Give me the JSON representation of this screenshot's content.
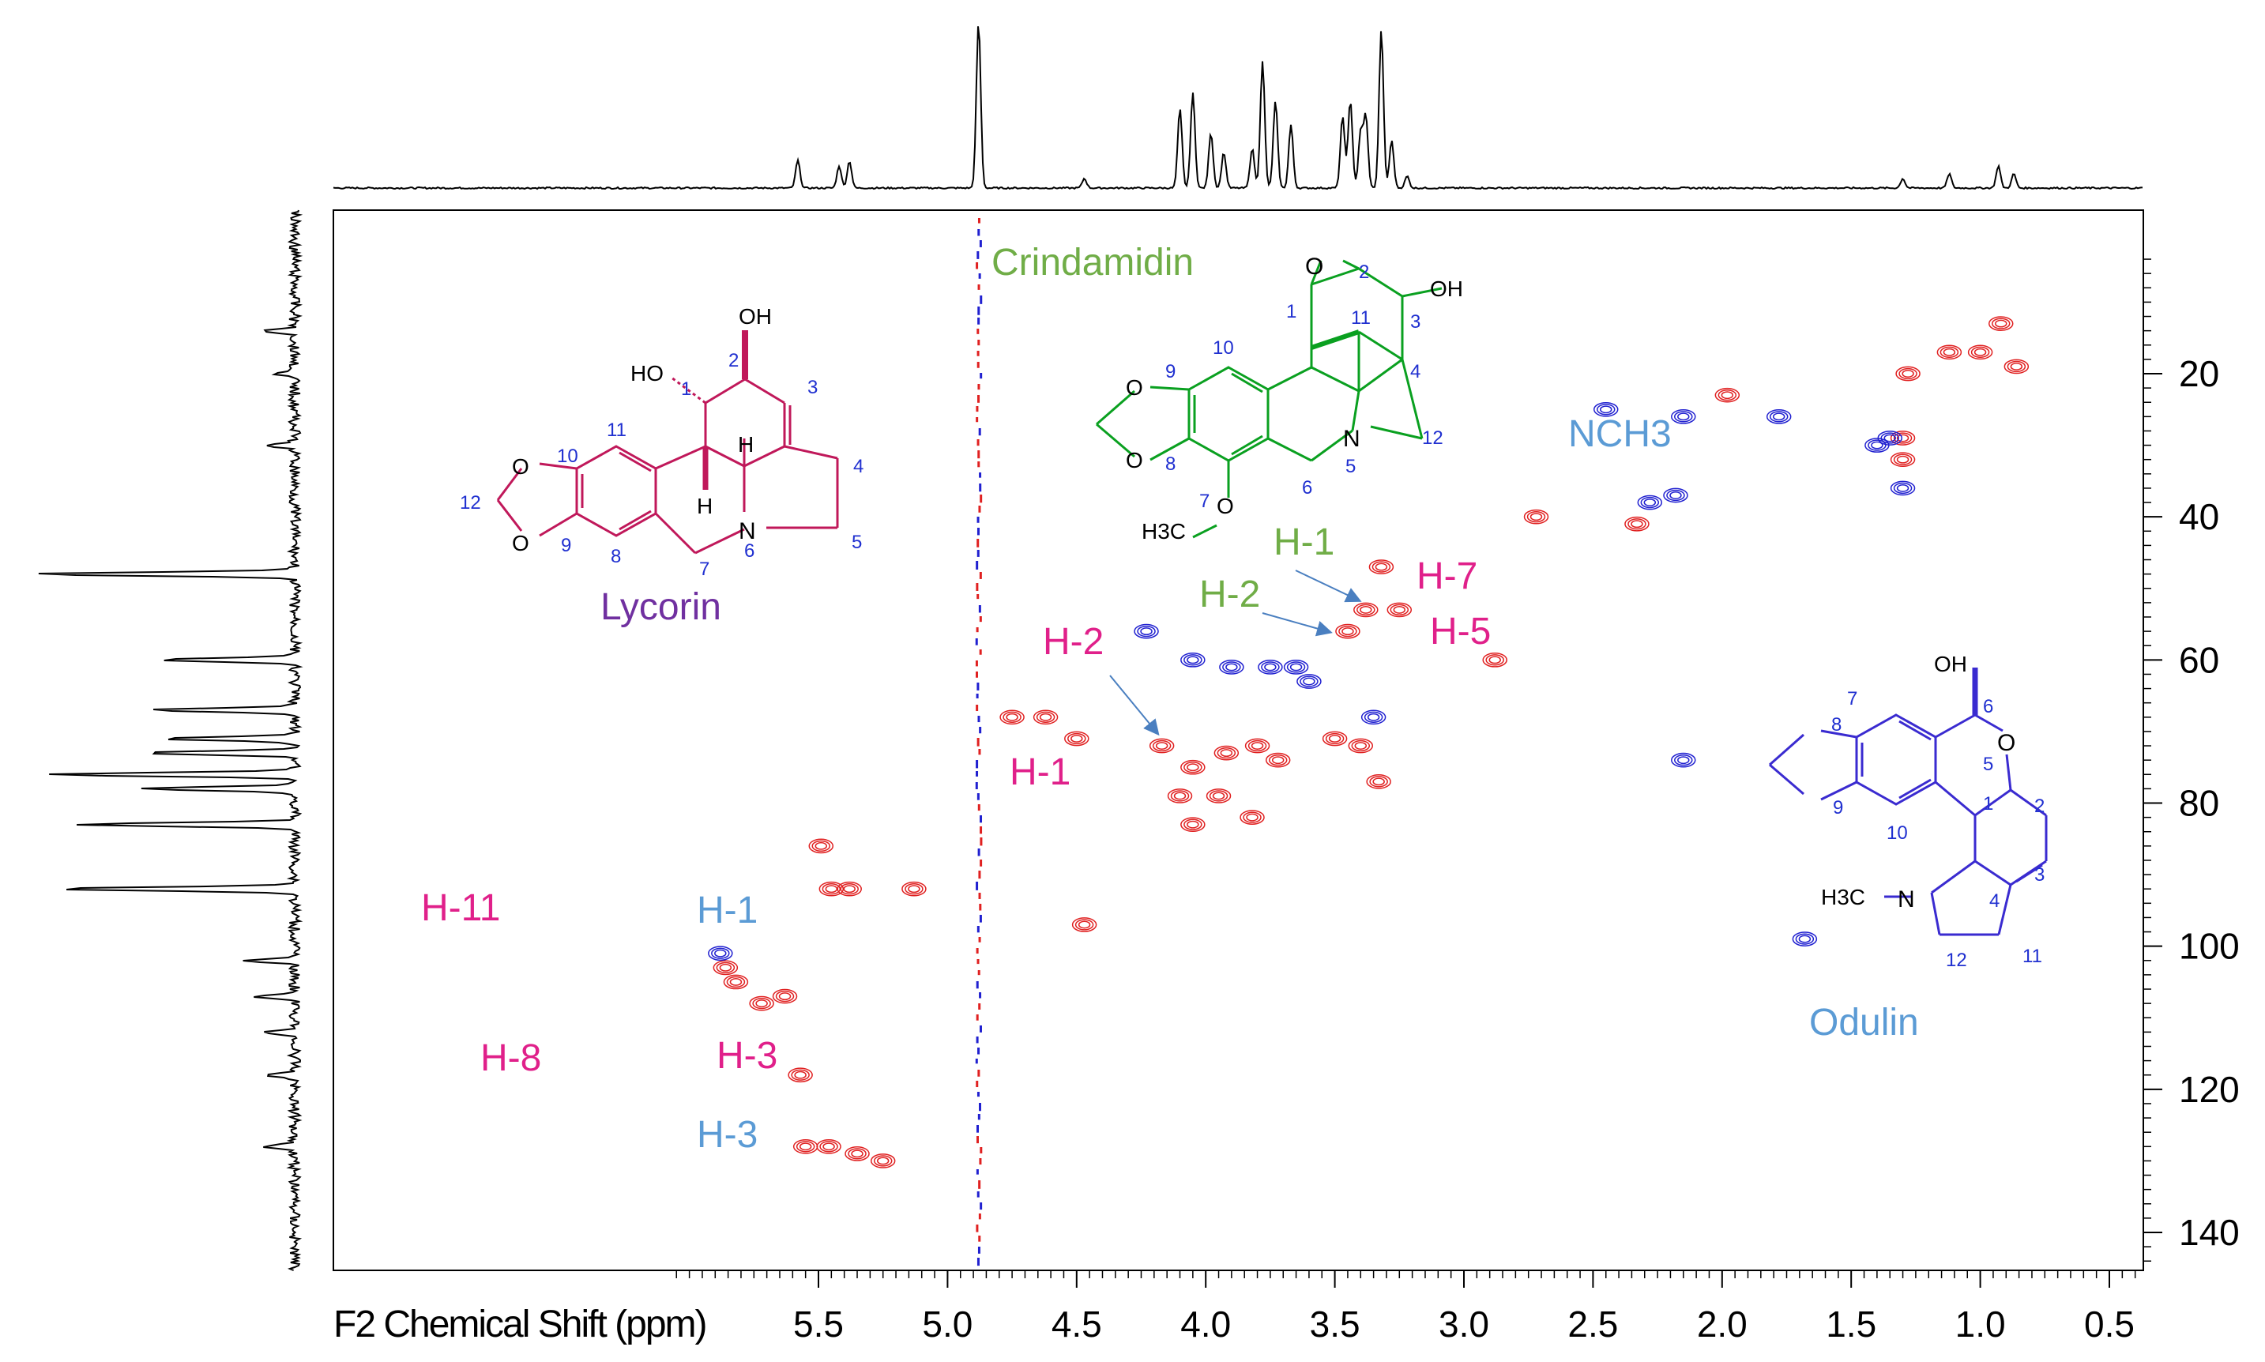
{
  "chart_data": {
    "type": "scatter",
    "subtype": "2D NMR HSQC contour plot",
    "xlabel": "F2 Chemical Shift (ppm)",
    "x_ticks": [
      "5.5",
      "5.0",
      "4.5",
      "4.0",
      "3.5",
      "3.0",
      "2.5",
      "2.0",
      "1.5",
      "1.0",
      "0.5"
    ],
    "y_ticks": [
      "20",
      "40",
      "60",
      "80",
      "100",
      "120",
      "140"
    ],
    "xlim": [
      6.1,
      0.35
    ],
    "ylim": [
      3,
      150
    ],
    "grid": false,
    "series": [
      {
        "color": "#e02020",
        "points": [
          [
            5.86,
            103
          ],
          [
            5.82,
            105
          ],
          [
            5.72,
            108
          ],
          [
            5.63,
            107
          ],
          [
            5.45,
            92
          ],
          [
            5.38,
            92
          ],
          [
            5.13,
            92
          ],
          [
            5.49,
            86
          ],
          [
            5.57,
            118
          ],
          [
            5.35,
            129
          ],
          [
            5.46,
            128
          ],
          [
            5.55,
            128
          ],
          [
            5.25,
            130
          ],
          [
            4.47,
            97
          ],
          [
            4.5,
            71
          ],
          [
            4.75,
            68
          ],
          [
            4.62,
            68
          ],
          [
            4.17,
            72
          ],
          [
            4.05,
            75
          ],
          [
            3.92,
            73
          ],
          [
            3.8,
            72
          ],
          [
            3.72,
            74
          ],
          [
            3.5,
            71
          ],
          [
            3.4,
            72
          ],
          [
            4.1,
            79
          ],
          [
            3.95,
            79
          ],
          [
            3.82,
            82
          ],
          [
            4.05,
            83
          ],
          [
            3.33,
            77
          ],
          [
            3.32,
            47
          ],
          [
            3.38,
            53
          ],
          [
            3.25,
            53
          ],
          [
            3.45,
            56
          ],
          [
            2.88,
            60
          ],
          [
            2.72,
            40
          ],
          [
            2.33,
            41
          ],
          [
            1.98,
            23
          ],
          [
            1.3,
            29
          ],
          [
            1.3,
            32
          ],
          [
            1.28,
            20
          ],
          [
            1.12,
            17
          ],
          [
            1.0,
            17
          ],
          [
            0.92,
            13
          ],
          [
            0.86,
            19
          ]
        ]
      },
      {
        "color": "#2020d0",
        "points": [
          [
            5.88,
            101
          ],
          [
            4.23,
            56
          ],
          [
            4.05,
            60
          ],
          [
            3.9,
            61
          ],
          [
            3.75,
            61
          ],
          [
            3.65,
            61
          ],
          [
            3.6,
            63
          ],
          [
            3.35,
            68
          ],
          [
            2.45,
            25
          ],
          [
            2.28,
            38
          ],
          [
            2.15,
            26
          ],
          [
            2.18,
            37
          ],
          [
            1.78,
            26
          ],
          [
            1.4,
            30
          ],
          [
            1.35,
            29
          ],
          [
            1.3,
            36
          ],
          [
            2.15,
            74
          ],
          [
            1.68,
            99
          ]
        ]
      }
    ],
    "annotations": {
      "compounds": [
        "Lycorin",
        "Crindamidin",
        "Odulin"
      ],
      "peak_labels": [
        "H-11",
        "H-1",
        "H-8",
        "H-3",
        "H-3",
        "H-2",
        "H-1",
        "H-1",
        "H-2",
        "H-7",
        "H-5",
        "NCH3"
      ]
    }
  },
  "colors": {
    "magenta": "#e0208a",
    "blue_label": "#5b9bd5",
    "green_label": "#70ad47",
    "lycorin_struct": "#c0185a",
    "crindamidin_struct": "#0aa020",
    "odulin_struct": "#3a2bd0",
    "contour_red": "#e02020",
    "contour_blue": "#2020d0",
    "arrow": "#4a7fc0"
  },
  "structures": {
    "lycorin": {
      "name": "Lycorin",
      "numbers": [
        "1",
        "2",
        "3",
        "4",
        "5",
        "6",
        "7",
        "8",
        "9",
        "10",
        "11",
        "12"
      ],
      "oh1": "HO",
      "oh2": "OH",
      "h1": "H",
      "h2": "H",
      "n": "N",
      "o1": "O",
      "o2": "O"
    },
    "crindamidin": {
      "name": "Crindamidin",
      "numbers": [
        "1",
        "2",
        "3",
        "4",
        "5",
        "6",
        "7",
        "8",
        "9",
        "10",
        "11",
        "12"
      ],
      "oh": "OH",
      "epo": "O",
      "n": "N",
      "o1": "O",
      "o2": "O",
      "ome": "O",
      "ch3": "H3C"
    },
    "odulin": {
      "name": "Odulin",
      "numbers": [
        "1",
        "2",
        "3",
        "4",
        "5",
        "6",
        "7",
        "8",
        "9",
        "10",
        "11",
        "12"
      ],
      "oh": "OH",
      "ring_o": "O",
      "n": "N",
      "ch3": "H3C"
    }
  },
  "peak_annotations": {
    "h11": "H-11",
    "h1_blue": "H-1",
    "h8": "H-8",
    "h3_mag": "H-3",
    "h3_blue": "H-3",
    "h2_mag": "H-2",
    "h1_mag": "H-1",
    "h1_green": "H-1",
    "h2_green": "H-2",
    "h7": "H-7",
    "h5": "H-5",
    "nch3": "NCH3"
  }
}
